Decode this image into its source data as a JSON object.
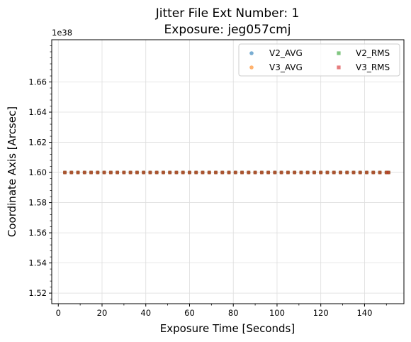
{
  "chart_data": {
    "type": "scatter",
    "title_line1": "Jitter File Ext Number: 1",
    "title_line2": "Exposure: jeg057cmj",
    "xlabel": "Exposure Time [Seconds]",
    "ylabel": "Coordinate Axis [Arcsec]",
    "y_offset_label": "1e38",
    "xlim": [
      -3,
      158
    ],
    "ylim": [
      1.513,
      1.688
    ],
    "x_ticks": [
      0,
      20,
      40,
      60,
      80,
      100,
      120,
      140
    ],
    "y_ticks": [
      1.52,
      1.54,
      1.56,
      1.58,
      1.6,
      1.62,
      1.64,
      1.66
    ],
    "y_tick_labels": [
      "1.52",
      "1.54",
      "1.56",
      "1.58",
      "1.60",
      "1.62",
      "1.64",
      "1.66"
    ],
    "grid": true,
    "legend_position": "top-right",
    "x": [
      3,
      6,
      9,
      12,
      15,
      18,
      21,
      24,
      27,
      30,
      33,
      36,
      39,
      42,
      45,
      48,
      51,
      54,
      57,
      60,
      63,
      66,
      69,
      72,
      75,
      78,
      81,
      84,
      87,
      90,
      93,
      96,
      99,
      102,
      105,
      108,
      111,
      114,
      117,
      120,
      123,
      126,
      129,
      132,
      135,
      138,
      141,
      144,
      147,
      150,
      151
    ],
    "series": [
      {
        "name": "V2_AVG",
        "marker": "circle",
        "color": "#1f77b4",
        "constant_value": 1.6
      },
      {
        "name": "V3_AVG",
        "marker": "circle",
        "color": "#ff7f0e",
        "constant_value": 1.6
      },
      {
        "name": "V2_RMS",
        "marker": "square",
        "color": "#2ca02c",
        "constant_value": 1.6
      },
      {
        "name": "V3_RMS",
        "marker": "square",
        "color": "#d62728",
        "constant_value": 1.6
      }
    ]
  }
}
